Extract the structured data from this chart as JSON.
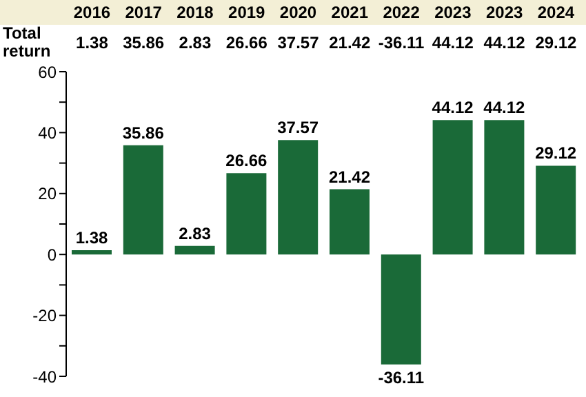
{
  "chart_data": {
    "type": "bar",
    "categories": [
      "2016",
      "2017",
      "2018",
      "2019",
      "2020",
      "2021",
      "2022",
      "2023",
      "2023",
      "2024"
    ],
    "values": [
      1.38,
      35.86,
      2.83,
      26.66,
      37.57,
      21.42,
      -36.11,
      44.12,
      44.12,
      29.12
    ],
    "color": "#1a6a38",
    "ylim": [
      -40,
      60
    ],
    "yticks": [
      -40,
      {
        "value": -30,
        "label": null
      },
      -20,
      {
        "value": -10,
        "label": null
      },
      0,
      {
        "value": 10,
        "label": null
      },
      20,
      {
        "value": 30,
        "label": null
      },
      40,
      {
        "value": 50,
        "label": null
      },
      60
    ],
    "value_labels": [
      "1.38",
      "35.86",
      "2.83",
      "26.66",
      "37.57",
      "21.42",
      "-36.11",
      "44.12",
      "44.12",
      "29.12"
    ],
    "annotations": [
      "Total return",
      "1.38",
      "35.86",
      "2.83",
      "26.66",
      "37.57",
      "21.42",
      "-36.11",
      "44.12",
      "44.12",
      "29.12"
    ],
    "tick_labels": "y"
  }
}
